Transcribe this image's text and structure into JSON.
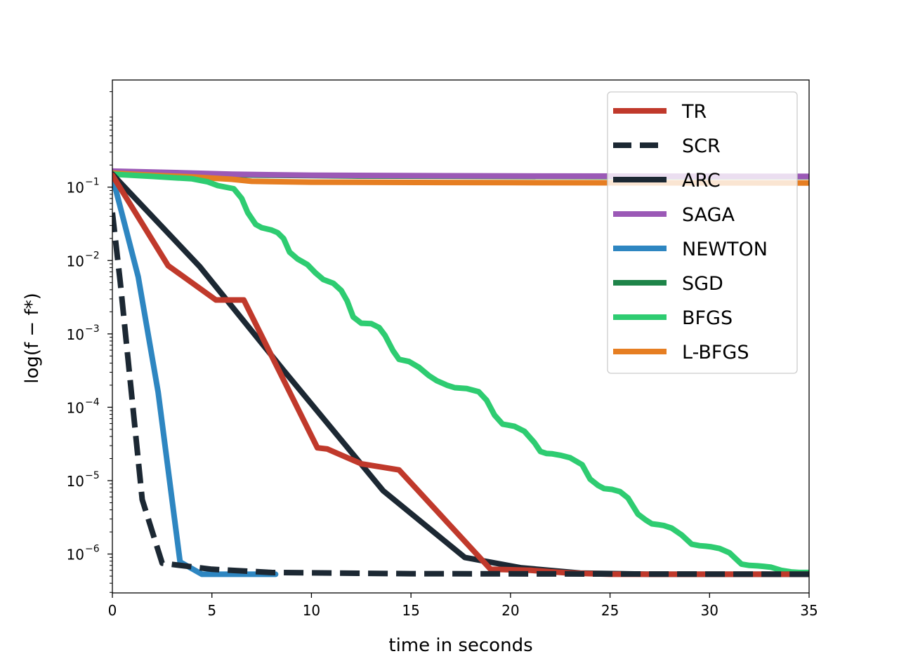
{
  "chart_data": {
    "type": "line",
    "title": "",
    "xlabel": "time in seconds",
    "ylabel": "log(f − f*)",
    "xlim": [
      0,
      35
    ],
    "ylim_log10": [
      -6.53,
      0.46
    ],
    "yscale": "log",
    "grid": false,
    "legend_position": "top-right",
    "x_ticks": [
      {
        "value": 0,
        "label": "0"
      },
      {
        "value": 5,
        "label": "5"
      },
      {
        "value": 10,
        "label": "10"
      },
      {
        "value": 15,
        "label": "15"
      },
      {
        "value": 20,
        "label": "20"
      },
      {
        "value": 25,
        "label": "25"
      },
      {
        "value": 30,
        "label": "30"
      },
      {
        "value": 35,
        "label": "35"
      }
    ],
    "y_ticks": [
      {
        "exp": -1,
        "base": "10",
        "sup": "−1"
      },
      {
        "exp": -2,
        "base": "10",
        "sup": "−2"
      },
      {
        "exp": -3,
        "base": "10",
        "sup": "−3"
      },
      {
        "exp": -4,
        "base": "10",
        "sup": "−4"
      },
      {
        "exp": -5,
        "base": "10",
        "sup": "−5"
      },
      {
        "exp": -6,
        "base": "10",
        "sup": "−6"
      }
    ],
    "series": [
      {
        "name": "SGD",
        "color": "#1e8449",
        "dash": false,
        "x": [
          0,
          2,
          5,
          8,
          12,
          20,
          30,
          35
        ],
        "y": [
          0.155,
          0.152,
          0.148,
          0.145,
          0.142,
          0.14,
          0.139,
          0.139
        ]
      },
      {
        "name": "SAGA",
        "color": "#9b59b6",
        "dash": false,
        "x": [
          0,
          3,
          6,
          10,
          20,
          35
        ],
        "y": [
          0.165,
          0.158,
          0.15,
          0.145,
          0.142,
          0.14
        ]
      },
      {
        "name": "L-BFGS",
        "color": "#e67e22",
        "dash": false,
        "x": [
          0,
          2,
          4,
          6,
          7,
          10,
          20,
          35
        ],
        "y": [
          0.155,
          0.145,
          0.138,
          0.128,
          0.12,
          0.117,
          0.115,
          0.114
        ]
      },
      {
        "name": "BFGS",
        "color": "#2ecc71",
        "dash": false,
        "x": [
          0,
          2,
          4,
          4.8,
          5.3,
          6.1,
          6.5,
          6.8,
          7.2,
          7.5,
          8,
          8.3,
          8.6,
          8.9,
          9.3,
          9.8,
          10.2,
          10.6,
          11.1,
          11.5,
          11.8,
          12.1,
          12.5,
          13,
          13.4,
          13.7,
          14.1,
          14.4,
          14.9,
          15.4,
          15.9,
          16.3,
          16.8,
          17.2,
          17.8,
          18.4,
          18.8,
          19.2,
          19.6,
          19.9,
          20.2,
          20.7,
          21.2,
          21.5,
          21.8,
          22.1,
          22.5,
          23,
          23.6,
          24,
          24.4,
          24.7,
          25.1,
          25.5,
          25.9,
          26.4,
          26.8,
          27.1,
          27.4,
          27.7,
          28.1,
          28.6,
          29.1,
          29.5,
          29.8,
          30.1,
          30.5,
          31,
          31.6,
          32,
          32.4,
          32.7,
          33.1,
          33.6,
          34.1,
          34.5,
          35
        ],
        "y": [
          0.15,
          0.14,
          0.13,
          0.118,
          0.105,
          0.095,
          0.07,
          0.045,
          0.031,
          0.028,
          0.026,
          0.024,
          0.02,
          0.013,
          0.0105,
          0.0088,
          0.0068,
          0.0055,
          0.0049,
          0.0039,
          0.0028,
          0.0017,
          0.0014,
          0.00138,
          0.00122,
          0.00095,
          0.00059,
          0.00045,
          0.00042,
          0.00035,
          0.00027,
          0.00023,
          0.0002,
          0.000185,
          0.00018,
          0.000163,
          0.000125,
          7.8e-05,
          5.9e-05,
          5.7e-05,
          5.5e-05,
          4.7e-05,
          3.3e-05,
          2.5e-05,
          2.35e-05,
          2.32e-05,
          2.22e-05,
          2.05e-05,
          1.65e-05,
          1.05e-05,
          8.6e-06,
          7.8e-06,
          7.6e-06,
          7.1e-06,
          5.8e-06,
          3.5e-06,
          2.9e-06,
          2.58e-06,
          2.52e-06,
          2.45e-06,
          2.25e-06,
          1.82e-06,
          1.36e-06,
          1.3e-06,
          1.28e-06,
          1.25e-06,
          1.19e-06,
          1.04e-06,
          7.3e-07,
          7e-07,
          6.9e-07,
          6.8e-07,
          6.6e-07,
          6e-07,
          5.7e-07,
          5.6e-07,
          5.6e-07
        ]
      },
      {
        "name": "NEWTON",
        "color": "#2e86c1",
        "dash": false,
        "x": [
          0,
          1.3,
          2.3,
          3.4,
          4.5,
          5.5,
          8.2
        ],
        "y": [
          0.14,
          0.006,
          0.00016,
          7.8e-07,
          5.3e-07,
          5.3e-07,
          5.3e-07
        ]
      },
      {
        "name": "ARC",
        "color": "#1c2833",
        "dash": false,
        "x": [
          0,
          4.4,
          8.6,
          13.6,
          17.7,
          20.5,
          23.5,
          27,
          35
        ],
        "y": [
          0.15,
          0.0082,
          0.00032,
          7.3e-06,
          9e-07,
          6.5e-07,
          5.5e-07,
          5.3e-07,
          5.3e-07
        ]
      },
      {
        "name": "TR",
        "color": "#c0392b",
        "dash": false,
        "x": [
          0,
          2.8,
          5.2,
          6.6,
          10.3,
          10.8,
          12.5,
          14.4,
          19,
          21,
          23,
          25,
          35
        ],
        "y": [
          0.145,
          0.0085,
          0.0029,
          0.0029,
          2.8e-05,
          2.7e-05,
          1.7e-05,
          1.4e-05,
          6.2e-07,
          6e-07,
          5.5e-07,
          5.3e-07,
          5.3e-07
        ]
      },
      {
        "name": "SCR",
        "color": "#1c2833",
        "dash": true,
        "x": [
          0,
          0.4,
          1.5,
          2.5,
          5,
          8,
          15,
          35
        ],
        "y": [
          0.045,
          0.005,
          5.5e-06,
          7.5e-07,
          6.2e-07,
          5.6e-07,
          5.4e-07,
          5.3e-07
        ]
      }
    ],
    "legend": [
      {
        "name": "TR",
        "color": "#c0392b",
        "dash": false
      },
      {
        "name": "SCR",
        "color": "#1c2833",
        "dash": true
      },
      {
        "name": "ARC",
        "color": "#1c2833",
        "dash": false
      },
      {
        "name": "SAGA",
        "color": "#9b59b6",
        "dash": false
      },
      {
        "name": "NEWTON",
        "color": "#2e86c1",
        "dash": false
      },
      {
        "name": "SGD",
        "color": "#1e8449",
        "dash": false
      },
      {
        "name": "BFGS",
        "color": "#2ecc71",
        "dash": false
      },
      {
        "name": "L-BFGS",
        "color": "#e67e22",
        "dash": false
      }
    ]
  }
}
